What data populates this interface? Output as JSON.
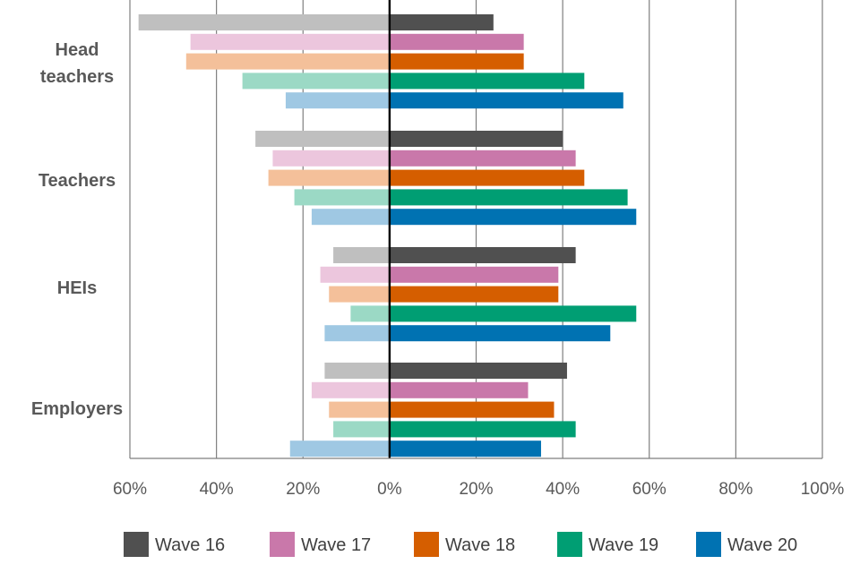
{
  "chart_data": {
    "type": "bar",
    "orientation": "horizontal-diverging",
    "categories": [
      [
        "Head",
        "teachers"
      ],
      [
        "Teachers"
      ],
      [
        "HEIs"
      ],
      [
        "Employers"
      ]
    ],
    "category_keys": [
      "head-teachers",
      "teachers",
      "heis",
      "employers"
    ],
    "x_ticks": [
      "60%",
      "40%",
      "20%",
      "0%",
      "20%",
      "40%",
      "60%",
      "80%",
      "100%"
    ],
    "x_range": [
      -60,
      100
    ],
    "grid": true,
    "legend_position": "bottom",
    "series": [
      {
        "name": "Wave 16",
        "color": "#505050",
        "light_color": "#bfbfbf",
        "positive": [
          24,
          40,
          43,
          41
        ],
        "negative": [
          58,
          31,
          13,
          15
        ]
      },
      {
        "name": "Wave 17",
        "color": "#c978aa",
        "light_color": "#ecc6dd",
        "positive": [
          31,
          43,
          39,
          32
        ],
        "negative": [
          46,
          27,
          16,
          18
        ]
      },
      {
        "name": "Wave 18",
        "color": "#d55e00",
        "light_color": "#f4c09a",
        "positive": [
          31,
          45,
          39,
          38
        ],
        "negative": [
          47,
          28,
          14,
          14
        ]
      },
      {
        "name": "Wave 19",
        "color": "#009e73",
        "light_color": "#9bd9c5",
        "positive": [
          45,
          55,
          57,
          43
        ],
        "negative": [
          34,
          22,
          9,
          13
        ]
      },
      {
        "name": "Wave 20",
        "color": "#0072b2",
        "light_color": "#9fc8e3",
        "positive": [
          54,
          57,
          51,
          35
        ],
        "negative": [
          24,
          18,
          15,
          23
        ]
      }
    ]
  }
}
